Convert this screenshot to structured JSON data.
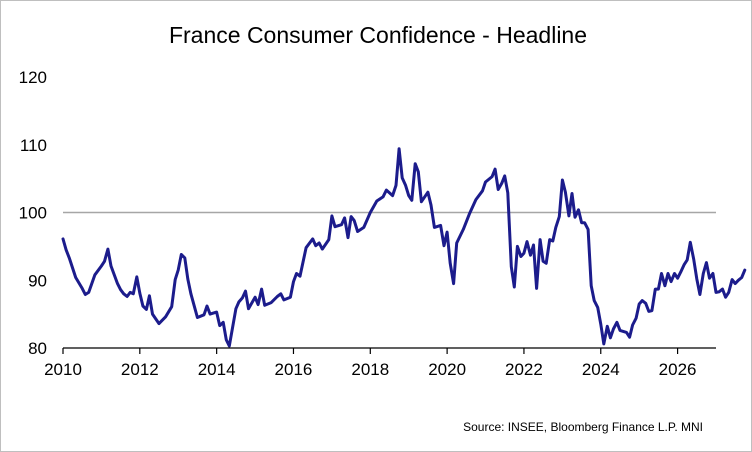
{
  "chart_data": {
    "type": "line",
    "title": "France Consumer Confidence - Headline",
    "source": "Source: INSEE, Bloomberg Finance L.P. MNI",
    "xlabel": "",
    "ylabel": "",
    "xlim": [
      2010,
      2027
    ],
    "ylim": [
      80,
      120
    ],
    "x_ticks": [
      2010,
      2012,
      2014,
      2016,
      2018,
      2020,
      2022,
      2024,
      2026
    ],
    "x_tick_labels": [
      "2010",
      "2012",
      "2014",
      "2016",
      "2018",
      "2020",
      "2022",
      "2024",
      "2026"
    ],
    "y_ticks": [
      80,
      90,
      100,
      110,
      120
    ],
    "y_tick_labels": [
      "80",
      "90",
      "100",
      "110",
      "120"
    ],
    "reference_line": 100,
    "colors": {
      "series": "#1c1c8c",
      "reference": "#a6a6a6",
      "axis": "#000000"
    },
    "series": [
      {
        "name": "France Consumer Confidence - Headline",
        "points": [
          [
            2010.0,
            96.1
          ],
          [
            2010.08,
            94.5
          ],
          [
            2010.17,
            93.2
          ],
          [
            2010.33,
            90.4
          ],
          [
            2010.5,
            88.8
          ],
          [
            2010.58,
            87.9
          ],
          [
            2010.67,
            88.2
          ],
          [
            2010.83,
            90.8
          ],
          [
            2011.0,
            92.1
          ],
          [
            2011.08,
            92.8
          ],
          [
            2011.17,
            94.6
          ],
          [
            2011.25,
            92.1
          ],
          [
            2011.42,
            89.5
          ],
          [
            2011.5,
            88.6
          ],
          [
            2011.58,
            88.0
          ],
          [
            2011.67,
            87.6
          ],
          [
            2011.75,
            88.2
          ],
          [
            2011.83,
            88.0
          ],
          [
            2011.92,
            90.5
          ],
          [
            2012.0,
            88.1
          ],
          [
            2012.08,
            86.2
          ],
          [
            2012.17,
            85.7
          ],
          [
            2012.25,
            87.7
          ],
          [
            2012.33,
            85.0
          ],
          [
            2012.5,
            83.6
          ],
          [
            2012.67,
            84.6
          ],
          [
            2012.83,
            86.1
          ],
          [
            2012.92,
            90.1
          ],
          [
            2013.0,
            91.5
          ],
          [
            2013.08,
            93.8
          ],
          [
            2013.17,
            93.3
          ],
          [
            2013.25,
            90.2
          ],
          [
            2013.33,
            88.0
          ],
          [
            2013.5,
            84.5
          ],
          [
            2013.67,
            84.9
          ],
          [
            2013.75,
            86.2
          ],
          [
            2013.83,
            85.0
          ],
          [
            2014.0,
            85.3
          ],
          [
            2014.08,
            83.3
          ],
          [
            2014.17,
            83.8
          ],
          [
            2014.25,
            81.2
          ],
          [
            2014.33,
            80.3
          ],
          [
            2014.5,
            85.8
          ],
          [
            2014.58,
            86.8
          ],
          [
            2014.67,
            87.4
          ],
          [
            2014.75,
            88.4
          ],
          [
            2014.83,
            85.8
          ],
          [
            2015.0,
            87.5
          ],
          [
            2015.08,
            86.4
          ],
          [
            2015.17,
            88.7
          ],
          [
            2015.25,
            86.3
          ],
          [
            2015.42,
            86.7
          ],
          [
            2015.58,
            87.6
          ],
          [
            2015.67,
            88.0
          ],
          [
            2015.75,
            87.1
          ],
          [
            2015.92,
            87.5
          ],
          [
            2016.0,
            89.8
          ],
          [
            2016.08,
            91.0
          ],
          [
            2016.17,
            90.6
          ],
          [
            2016.33,
            94.8
          ],
          [
            2016.5,
            96.1
          ],
          [
            2016.58,
            95.1
          ],
          [
            2016.67,
            95.5
          ],
          [
            2016.75,
            94.6
          ],
          [
            2016.92,
            96.0
          ],
          [
            2017.0,
            99.5
          ],
          [
            2017.08,
            97.9
          ],
          [
            2017.25,
            98.2
          ],
          [
            2017.33,
            99.2
          ],
          [
            2017.42,
            96.3
          ],
          [
            2017.5,
            99.4
          ],
          [
            2017.58,
            98.8
          ],
          [
            2017.67,
            97.2
          ],
          [
            2017.83,
            97.8
          ],
          [
            2018.0,
            100.0
          ],
          [
            2018.17,
            101.7
          ],
          [
            2018.33,
            102.3
          ],
          [
            2018.42,
            103.3
          ],
          [
            2018.58,
            102.5
          ],
          [
            2018.67,
            104.0
          ],
          [
            2018.75,
            109.4
          ],
          [
            2018.83,
            105.1
          ],
          [
            2018.92,
            104.0
          ],
          [
            2019.0,
            102.5
          ],
          [
            2019.08,
            101.8
          ],
          [
            2019.17,
            107.2
          ],
          [
            2019.25,
            106.0
          ],
          [
            2019.33,
            101.6
          ],
          [
            2019.5,
            103.0
          ],
          [
            2019.58,
            101.1
          ],
          [
            2019.67,
            97.8
          ],
          [
            2019.83,
            98.1
          ],
          [
            2019.92,
            95.1
          ],
          [
            2020.0,
            97.1
          ],
          [
            2020.08,
            92.5
          ],
          [
            2020.17,
            89.5
          ],
          [
            2020.25,
            95.5
          ],
          [
            2020.42,
            97.5
          ],
          [
            2020.58,
            99.8
          ],
          [
            2020.75,
            101.9
          ],
          [
            2020.92,
            103.2
          ],
          [
            2021.0,
            104.5
          ],
          [
            2021.17,
            105.3
          ],
          [
            2021.25,
            106.4
          ],
          [
            2021.33,
            103.4
          ],
          [
            2021.42,
            104.3
          ],
          [
            2021.5,
            105.4
          ],
          [
            2021.58,
            102.9
          ],
          [
            2021.67,
            92.0
          ],
          [
            2021.75,
            89.0
          ],
          [
            2021.83,
            95.0
          ],
          [
            2021.92,
            93.5
          ],
          [
            2022.0,
            94.0
          ],
          [
            2022.08,
            95.7
          ],
          [
            2022.17,
            93.7
          ],
          [
            2022.25,
            95.2
          ],
          [
            2022.33,
            88.8
          ],
          [
            2022.42,
            96.0
          ],
          [
            2022.5,
            92.8
          ],
          [
            2022.58,
            92.5
          ],
          [
            2022.67,
            96.0
          ],
          [
            2022.75,
            95.8
          ],
          [
            2022.83,
            97.8
          ],
          [
            2022.92,
            99.4
          ],
          [
            2023.0,
            104.8
          ],
          [
            2023.08,
            103.0
          ],
          [
            2023.17,
            99.5
          ],
          [
            2023.25,
            102.8
          ],
          [
            2023.33,
            99.3
          ],
          [
            2023.42,
            100.4
          ],
          [
            2023.5,
            98.5
          ],
          [
            2023.58,
            98.5
          ],
          [
            2023.67,
            97.5
          ],
          [
            2023.75,
            89.2
          ],
          [
            2023.83,
            87.0
          ],
          [
            2023.92,
            86.0
          ],
          [
            2024.0,
            83.5
          ],
          [
            2024.08,
            80.6
          ],
          [
            2024.17,
            83.2
          ],
          [
            2024.25,
            81.5
          ],
          [
            2024.33,
            82.8
          ],
          [
            2024.42,
            83.8
          ],
          [
            2024.5,
            82.6
          ],
          [
            2024.67,
            82.3
          ],
          [
            2024.75,
            81.6
          ],
          [
            2024.83,
            83.4
          ],
          [
            2024.92,
            84.4
          ],
          [
            2025.0,
            86.5
          ],
          [
            2025.08,
            87.0
          ],
          [
            2025.17,
            86.6
          ],
          [
            2025.25,
            85.4
          ],
          [
            2025.33,
            85.5
          ],
          [
            2025.42,
            88.7
          ],
          [
            2025.5,
            88.7
          ],
          [
            2025.58,
            91.0
          ],
          [
            2025.67,
            89.2
          ],
          [
            2025.75,
            91.0
          ],
          [
            2025.83,
            89.8
          ],
          [
            2025.92,
            91.0
          ],
          [
            2026.0,
            90.3
          ],
          [
            2026.08,
            91.2
          ],
          [
            2026.17,
            92.3
          ],
          [
            2026.25,
            93.0
          ],
          [
            2026.33,
            95.6
          ],
          [
            2026.42,
            93.1
          ],
          [
            2026.5,
            90.2
          ],
          [
            2026.58,
            87.9
          ],
          [
            2026.67,
            91.0
          ],
          [
            2026.75,
            92.6
          ],
          [
            2026.83,
            90.3
          ],
          [
            2026.92,
            91.0
          ],
          [
            2027.0,
            88.2
          ],
          [
            2027.08,
            88.3
          ],
          [
            2027.17,
            88.7
          ],
          [
            2027.25,
            87.5
          ],
          [
            2027.33,
            88.2
          ],
          [
            2027.42,
            90.1
          ],
          [
            2027.5,
            89.5
          ],
          [
            2027.58,
            90.0
          ],
          [
            2027.67,
            90.4
          ],
          [
            2027.75,
            91.5
          ]
        ]
      }
    ]
  }
}
